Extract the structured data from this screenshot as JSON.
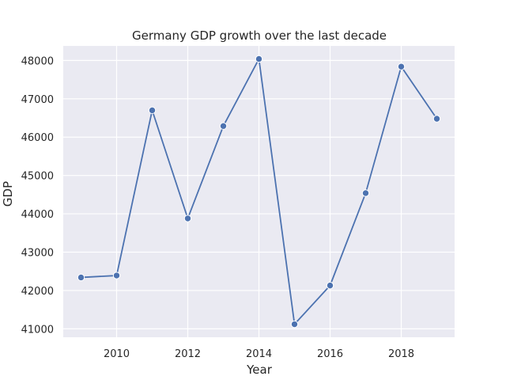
{
  "chart_data": {
    "type": "line",
    "title": "Germany GDP growth over the last decade",
    "xlabel": "Year",
    "ylabel": "GDP",
    "x": [
      2009,
      2010,
      2011,
      2012,
      2013,
      2014,
      2015,
      2016,
      2017,
      2018,
      2019
    ],
    "series": [
      {
        "values": [
          42340,
          42390,
          46700,
          43880,
          46290,
          48040,
          41120,
          42130,
          44540,
          47840,
          46480
        ],
        "color": "#4c72b0",
        "marker": "circle"
      }
    ],
    "xlim": [
      2008.5,
      2019.5
    ],
    "ylim": [
      40780,
      48380
    ],
    "xticks": [
      "2010",
      "2012",
      "2014",
      "2016",
      "2018"
    ],
    "yticks": [
      "41000",
      "42000",
      "43000",
      "44000",
      "45000",
      "46000",
      "47000",
      "48000"
    ],
    "grid": true,
    "background_color": "#eaeaf2",
    "grid_color": "#ffffff"
  }
}
